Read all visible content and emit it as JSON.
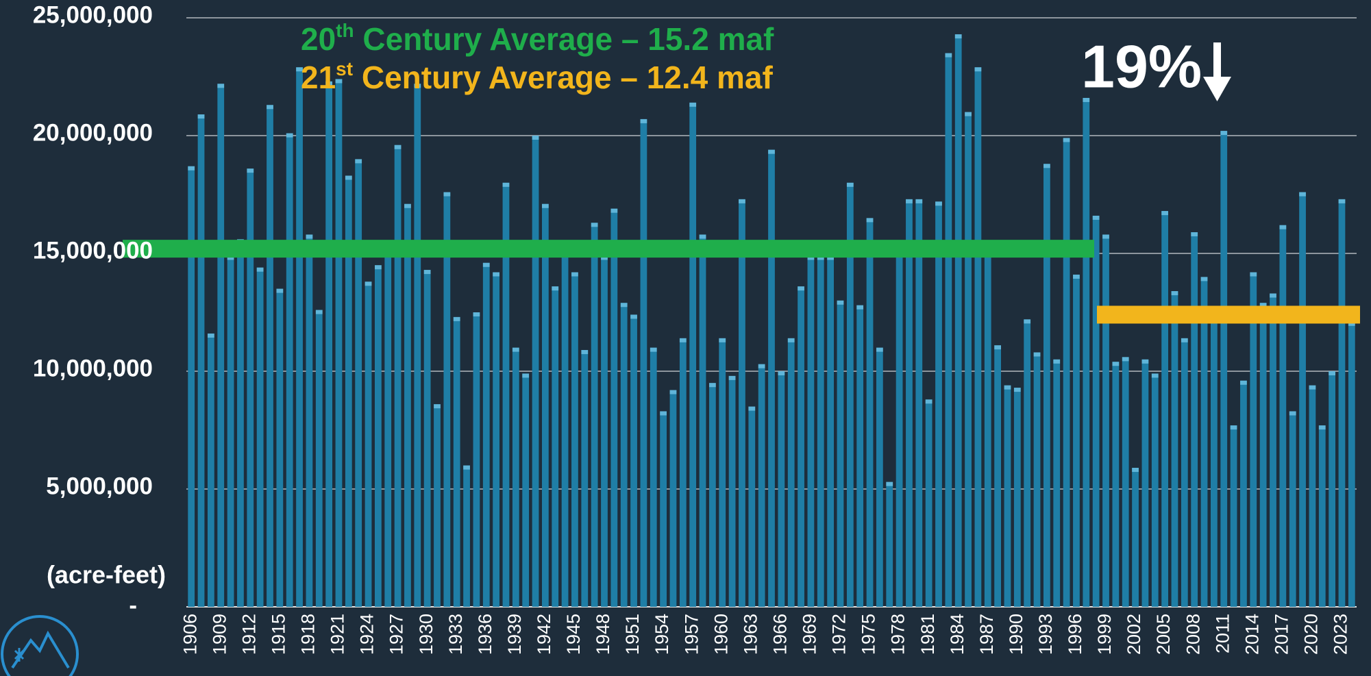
{
  "chart_data": {
    "type": "bar",
    "y_label": "(acre-feet)",
    "color": "#1f7ea6",
    "categories": [
      "1906",
      null,
      null,
      "1909",
      null,
      null,
      "1912",
      null,
      null,
      "1915",
      null,
      null,
      "1918",
      null,
      null,
      "1921",
      null,
      null,
      "1924",
      null,
      null,
      "1927",
      null,
      null,
      "1930",
      null,
      null,
      "1933",
      null,
      null,
      "1936",
      null,
      null,
      "1939",
      null,
      null,
      "1942",
      null,
      null,
      "1945",
      null,
      null,
      "1948",
      null,
      null,
      "1951",
      null,
      null,
      "1954",
      null,
      null,
      "1957",
      null,
      null,
      "1960",
      null,
      null,
      "1963",
      null,
      null,
      "1966",
      null,
      null,
      "1969",
      null,
      null,
      "1972",
      null,
      null,
      "1975",
      null,
      null,
      "1978",
      null,
      null,
      "1981",
      null,
      null,
      "1984",
      null,
      null,
      "1987",
      null,
      null,
      "1990",
      null,
      null,
      "1993",
      null,
      null,
      "1996",
      null,
      null,
      "1999",
      null,
      null,
      "2002",
      null,
      null,
      "2005",
      null,
      null,
      "2008",
      null,
      null,
      "2011",
      null,
      null,
      "2014",
      null,
      null,
      "2017",
      null,
      null,
      "2020",
      null,
      null,
      "2023",
      null
    ],
    "values": [
      18700000,
      20900000,
      11600000,
      22200000,
      14900000,
      15600000,
      18600000,
      14400000,
      21300000,
      13500000,
      20100000,
      22900000,
      15800000,
      12600000,
      22300000,
      22400000,
      18300000,
      19000000,
      13800000,
      14500000,
      15300000,
      19600000,
      17100000,
      22200000,
      14300000,
      8600000,
      17600000,
      12300000,
      6000000,
      12500000,
      14600000,
      14200000,
      18000000,
      11000000,
      9900000,
      20000000,
      17100000,
      13600000,
      15200000,
      14200000,
      10900000,
      16300000,
      14900000,
      16900000,
      12900000,
      12400000,
      20700000,
      11000000,
      8300000,
      9200000,
      11400000,
      21400000,
      15800000,
      9500000,
      11400000,
      9800000,
      17300000,
      8500000,
      10300000,
      19400000,
      10000000,
      11400000,
      13600000,
      14900000,
      14900000,
      14900000,
      13000000,
      18000000,
      12800000,
      16500000,
      11000000,
      5300000,
      15000000,
      17300000,
      17300000,
      8800000,
      17200000,
      23500000,
      24300000,
      21000000,
      22900000,
      15300000,
      11100000,
      9400000,
      9300000,
      12200000,
      10800000,
      18800000,
      10500000,
      19900000,
      14100000,
      21600000,
      16600000,
      15800000,
      10400000,
      10600000,
      5900000,
      10500000,
      9900000,
      16800000,
      13400000,
      11400000,
      15900000,
      14000000,
      12600000,
      20200000,
      7700000,
      9600000,
      14200000,
      12900000,
      13300000,
      16200000,
      8300000,
      17600000,
      9400000,
      7700000,
      10000000,
      17300000,
      12100000
    ],
    "ylim": [
      0,
      25000000
    ],
    "yticks": [
      {
        "value": 0,
        "label": "-"
      },
      {
        "value": 5000000,
        "label": "5,000,000"
      },
      {
        "value": 10000000,
        "label": "10,000,000"
      },
      {
        "value": 15000000,
        "label": "15,000,000"
      },
      {
        "value": 20000000,
        "label": "20,000,000"
      },
      {
        "value": 25000000,
        "label": "25,000,000"
      }
    ],
    "grid": true,
    "averages": [
      {
        "ordinal": "20",
        "suffix": "th",
        "text": " Century Average – 15.2 maf",
        "value": 15200000,
        "color": "#1fae4b"
      },
      {
        "ordinal": "21",
        "suffix": "st",
        "text": " Century Average – 12.4 maf",
        "value": 12400000,
        "color": "#f2b51c"
      }
    ],
    "annotation": "19%"
  }
}
